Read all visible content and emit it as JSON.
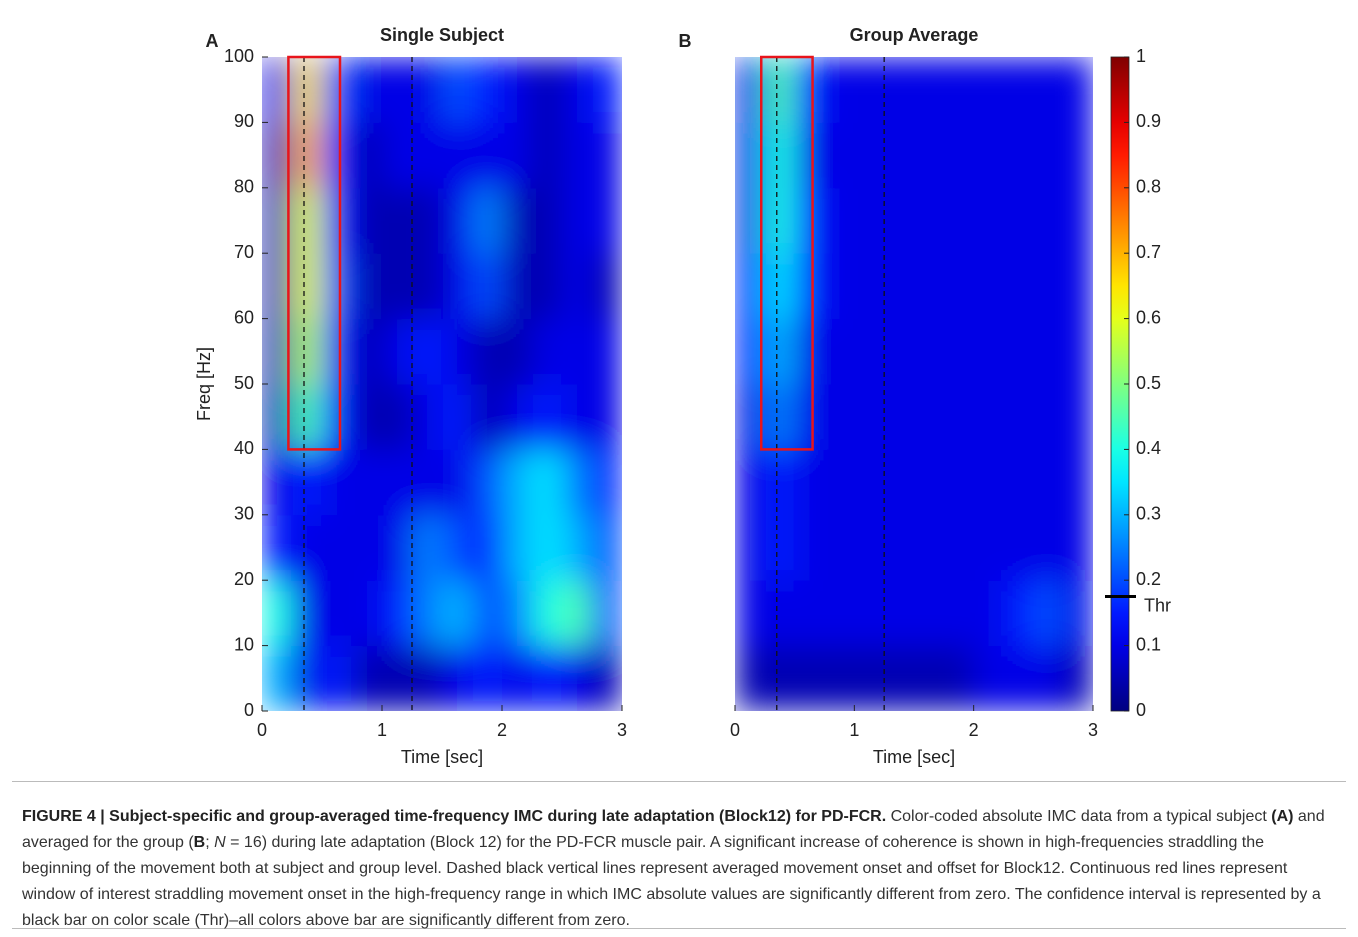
{
  "chart_data": [
    {
      "type": "heatmap",
      "panel_label": "A",
      "title": "Single Subject",
      "x_label": "Time [sec]",
      "y_label": "Freq [Hz]",
      "xlim": [
        0,
        3
      ],
      "ylim": [
        0,
        100
      ],
      "xticks": [
        0,
        1,
        2,
        3
      ],
      "yticks": [
        0,
        10,
        20,
        30,
        40,
        50,
        60,
        70,
        80,
        90,
        100
      ],
      "xbins": [
        0,
        0.25,
        0.5,
        0.75,
        1,
        1.25,
        1.5,
        1.75,
        2,
        2.25,
        2.5,
        2.75,
        3
      ],
      "ybins": [
        0,
        10,
        20,
        30,
        40,
        50,
        60,
        70,
        80,
        90,
        100
      ],
      "z": [
        [
          0.3,
          0.1,
          0.15,
          0.05,
          0.05,
          0.05,
          0.1,
          0.15,
          0.1,
          0.15,
          0.1,
          0.05
        ],
        [
          0.4,
          0.1,
          0.1,
          0.1,
          0.15,
          0.25,
          0.3,
          0.2,
          0.25,
          0.4,
          0.45,
          0.2
        ],
        [
          0.15,
          0.1,
          0.1,
          0.1,
          0.1,
          0.25,
          0.2,
          0.15,
          0.3,
          0.35,
          0.3,
          0.2
        ],
        [
          0.1,
          0.15,
          0.1,
          0.1,
          0.1,
          0.1,
          0.1,
          0.2,
          0.3,
          0.35,
          0.25,
          0.15
        ],
        [
          0.05,
          0.45,
          0.15,
          0.05,
          0.05,
          0.1,
          0.15,
          0.05,
          0.1,
          0.15,
          0.1,
          0.1
        ],
        [
          0.05,
          0.55,
          0.15,
          0.05,
          0.1,
          0.15,
          0.1,
          0.05,
          0.05,
          0.1,
          0.1,
          0.1
        ],
        [
          0.05,
          0.6,
          0.2,
          0.05,
          0.05,
          0.05,
          0.1,
          0.2,
          0.05,
          0.05,
          0.1,
          0.05
        ],
        [
          0.05,
          0.6,
          0.15,
          0.05,
          0.05,
          0.05,
          0.1,
          0.25,
          0.05,
          0.05,
          0.1,
          0.1
        ],
        [
          0.05,
          0.7,
          0.15,
          0.05,
          0.1,
          0.1,
          0.1,
          0.1,
          0.1,
          0.05,
          0.1,
          0.1
        ],
        [
          0.1,
          0.65,
          0.2,
          0.1,
          0.1,
          0.1,
          0.2,
          0.15,
          0.1,
          0.05,
          0.1,
          0.15
        ]
      ],
      "onset_lines": [
        0.35,
        1.25
      ],
      "roi": {
        "x": [
          0.22,
          0.65
        ],
        "y": [
          40,
          100
        ]
      }
    },
    {
      "type": "heatmap",
      "panel_label": "B",
      "title": "Group Average",
      "x_label": "Time [sec]",
      "xlim": [
        0,
        3
      ],
      "ylim": [
        0,
        100
      ],
      "xticks": [
        0,
        1,
        2,
        3
      ],
      "xbins": [
        0,
        0.25,
        0.5,
        0.75,
        1,
        1.25,
        1.5,
        1.75,
        2,
        2.25,
        2.5,
        2.75,
        3
      ],
      "ybins": [
        0,
        10,
        20,
        30,
        40,
        50,
        60,
        70,
        80,
        90,
        100
      ],
      "z": [
        [
          0.05,
          0.05,
          0.05,
          0.05,
          0.05,
          0.05,
          0.05,
          0.05,
          0.1,
          0.1,
          0.1,
          0.05
        ],
        [
          0.1,
          0.1,
          0.1,
          0.1,
          0.1,
          0.1,
          0.1,
          0.1,
          0.1,
          0.15,
          0.2,
          0.1
        ],
        [
          0.1,
          0.15,
          0.1,
          0.1,
          0.1,
          0.1,
          0.1,
          0.1,
          0.1,
          0.1,
          0.1,
          0.1
        ],
        [
          0.1,
          0.15,
          0.1,
          0.1,
          0.1,
          0.1,
          0.1,
          0.1,
          0.1,
          0.1,
          0.1,
          0.1
        ],
        [
          0.1,
          0.25,
          0.1,
          0.1,
          0.1,
          0.1,
          0.1,
          0.1,
          0.1,
          0.1,
          0.1,
          0.1
        ],
        [
          0.15,
          0.3,
          0.1,
          0.1,
          0.1,
          0.1,
          0.1,
          0.1,
          0.1,
          0.1,
          0.1,
          0.1
        ],
        [
          0.15,
          0.35,
          0.15,
          0.1,
          0.1,
          0.1,
          0.1,
          0.1,
          0.1,
          0.1,
          0.1,
          0.1
        ],
        [
          0.1,
          0.4,
          0.15,
          0.1,
          0.1,
          0.1,
          0.1,
          0.1,
          0.1,
          0.1,
          0.1,
          0.1
        ],
        [
          0.1,
          0.4,
          0.1,
          0.1,
          0.1,
          0.1,
          0.1,
          0.1,
          0.1,
          0.1,
          0.1,
          0.1
        ],
        [
          0.1,
          0.45,
          0.15,
          0.1,
          0.1,
          0.1,
          0.1,
          0.1,
          0.1,
          0.1,
          0.1,
          0.1
        ]
      ],
      "onset_lines": [
        0.35,
        1.25
      ],
      "roi": {
        "x": [
          0.22,
          0.65
        ],
        "y": [
          40,
          100
        ]
      }
    },
    {
      "type": "colorbar",
      "colormap": "jet",
      "clim": [
        0,
        1
      ],
      "ticks": [
        0,
        0.1,
        0.2,
        0.3,
        0.4,
        0.5,
        0.6,
        0.7,
        0.8,
        0.9,
        1
      ],
      "threshold": {
        "value": 0.175,
        "label": "Thr"
      }
    }
  ],
  "caption": {
    "title": "FIGURE 4 | Subject-specific and group-averaged time-frequency IMC during late adaptation (Block12) for PD-FCR.",
    "t0": " Color-coded absolute IMC data from a typical subject ",
    "a": "(A)",
    "t1": " and averaged for the group (",
    "b": "B",
    "t2": "; ",
    "n": "N",
    "t3": " = 16) during late adaptation (Block 12) for the PD-FCR muscle pair. A significant increase of coherence is shown in high-frequencies straddling the beginning of the movement both at subject and group level. Dashed black vertical lines represent averaged movement onset and offset for Block12. Continuous red lines represent window of interest straddling movement onset in the high-frequency range in which IMC absolute values are significantly different from zero. The confidence interval is represented by a black bar on color scale (Thr)–all colors above bar are significantly different from zero."
  }
}
